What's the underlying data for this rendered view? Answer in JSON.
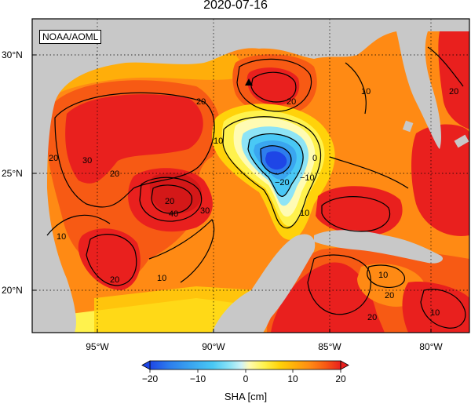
{
  "title": "2020-07-16",
  "credit": "NOAA/AOML",
  "lat_labels": [
    "30°N",
    "25°N",
    "20°N"
  ],
  "lon_labels": [
    "95°W",
    "90°W",
    "85°W",
    "80°W"
  ],
  "colorbar": {
    "label": "SHA [cm]",
    "ticks": [
      "−20",
      "−10",
      "0",
      "10",
      "20"
    ],
    "range": [
      -20,
      20
    ],
    "colors": [
      "#1e46e6",
      "#2d7ded",
      "#3aa6f0",
      "#49c8f5",
      "#8ee4f6",
      "#cff3f7",
      "#fffbb3",
      "#fff24d",
      "#ffd20a",
      "#ffae0a",
      "#ff8a14",
      "#f75a14",
      "#e9201e"
    ]
  },
  "contour_labels": [
    "20",
    "20",
    "20",
    "20",
    "30",
    "40",
    "30",
    "10",
    "10",
    "20",
    "10",
    "0",
    "−10",
    "−20",
    "10",
    "10",
    "20",
    "10",
    "20",
    "20",
    "20",
    "10"
  ],
  "colors": {
    "land": "#c8c8c8",
    "ocean_base": "#ff8a14",
    "warm_core": "#e9201e",
    "cold_core": "#1e46e6"
  }
}
